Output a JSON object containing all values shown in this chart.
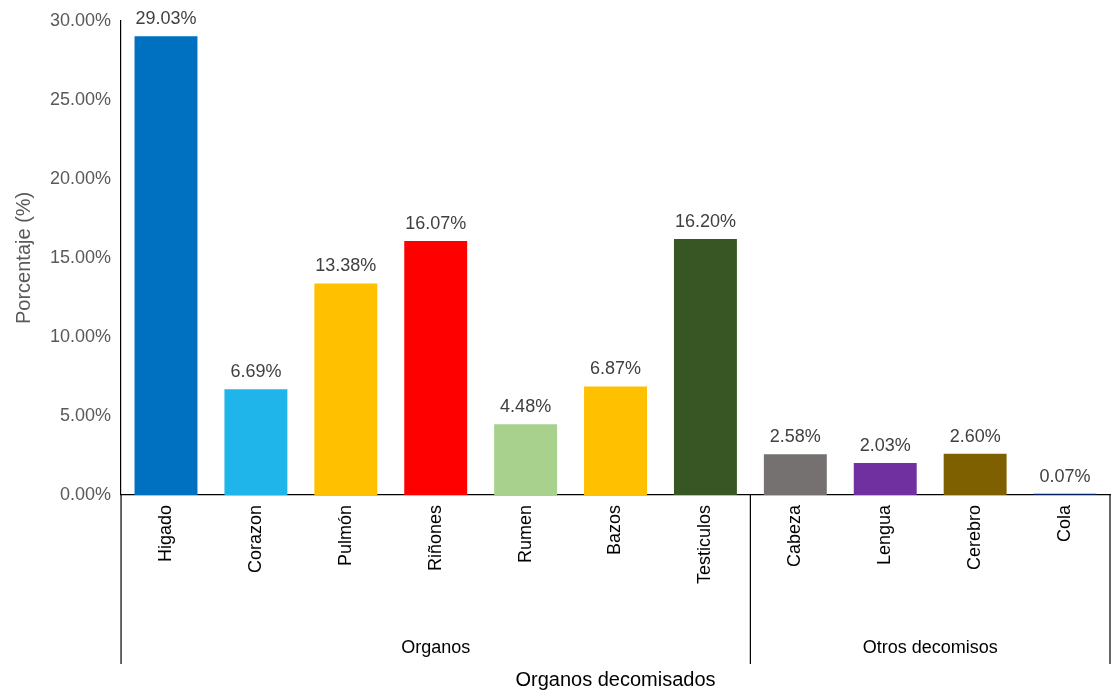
{
  "chart_data": {
    "type": "bar",
    "ylabel": "Porcentaje (%)",
    "xlabel": "Organos decomisados",
    "categories": [
      "Higado",
      "Corazon",
      "Pulmón",
      "Riñones",
      "Rumen",
      "Bazos",
      "Testiculos",
      "Cabeza",
      "Lengua",
      "Cerebro",
      "Cola"
    ],
    "values": [
      29.03,
      6.69,
      13.38,
      16.07,
      4.48,
      6.87,
      16.2,
      2.58,
      2.03,
      2.6,
      0.07
    ],
    "value_labels": [
      "29.03%",
      "6.69%",
      "13.38%",
      "16.07%",
      "4.48%",
      "6.87%",
      "16.20%",
      "2.58%",
      "2.03%",
      "2.60%",
      "0.07%"
    ],
    "colors": [
      "#0070c0",
      "#1fb5ea",
      "#ffc000",
      "#ff0000",
      "#a9d18e",
      "#ffc000",
      "#375623",
      "#767171",
      "#7030a0",
      "#7f6000",
      "#002060"
    ],
    "ylim": [
      0,
      30
    ],
    "yticks": [
      {
        "value": 0,
        "label": "0.00%"
      },
      {
        "value": 5,
        "label": "5.00%"
      },
      {
        "value": 10,
        "label": "10.00%"
      },
      {
        "value": 15,
        "label": "15.00%"
      },
      {
        "value": 20,
        "label": "20.00%"
      },
      {
        "value": 25,
        "label": "25.00%"
      },
      {
        "value": 30,
        "label": "30.00%"
      }
    ],
    "annotations": [
      "Organos",
      "Otros decomisos"
    ],
    "grid": false,
    "legend": false
  }
}
